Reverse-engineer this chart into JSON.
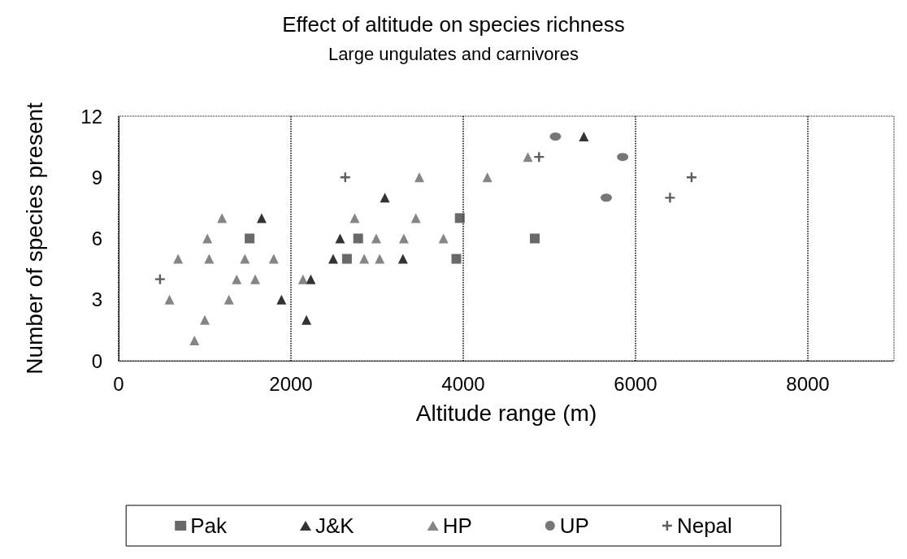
{
  "chart_data": {
    "type": "scatter",
    "title": "Effect of altitude on species richness",
    "subtitle": "Large ungulates and carnivores",
    "xlabel": "Altitude range (m)",
    "ylabel": "Number of species present",
    "xlim": [
      0,
      9000
    ],
    "xticks": [
      0,
      2000,
      4000,
      6000,
      8000
    ],
    "ylim": [
      0,
      12
    ],
    "yticks": [
      0,
      3,
      6,
      9,
      12
    ],
    "grid": "x",
    "legend": "bottom",
    "series": [
      {
        "name": "Pak",
        "color": "#444444",
        "marker": "square",
        "x": [
          1520,
          2650,
          2780,
          3960,
          3920,
          4830
        ],
        "values": [
          6,
          5,
          6,
          7,
          5,
          6
        ]
      },
      {
        "name": "J&K",
        "color": "#000000",
        "marker": "triangle",
        "x": [
          1660,
          1890,
          2180,
          2230,
          2570,
          2490,
          3090,
          3300,
          5400
        ],
        "values": [
          7,
          3,
          2,
          4,
          6,
          5,
          8,
          5,
          11
        ]
      },
      {
        "name": "HP",
        "color": "#666666",
        "marker": "triangle",
        "x": [
          1200,
          1030,
          690,
          1050,
          1465,
          1800,
          1370,
          1585,
          590,
          1280,
          1000,
          880,
          2140,
          2740,
          3490,
          3450,
          2990,
          3310,
          3770,
          2850,
          3030,
          4750,
          4280
        ],
        "values": [
          7,
          6,
          5,
          5,
          5,
          5,
          4,
          4,
          3,
          3,
          2,
          1,
          4,
          7,
          9,
          7,
          6,
          6,
          6,
          5,
          5,
          10,
          9
        ]
      },
      {
        "name": "UP",
        "color": "#555555",
        "marker": "circle",
        "x": [
          5070,
          5850,
          5660
        ],
        "values": [
          11,
          10,
          8
        ]
      },
      {
        "name": "Nepal",
        "color": "#333333",
        "marker": "cross",
        "x": [
          480,
          2630,
          4880,
          6650,
          6400
        ],
        "values": [
          4,
          9,
          10,
          9,
          8
        ]
      }
    ]
  }
}
